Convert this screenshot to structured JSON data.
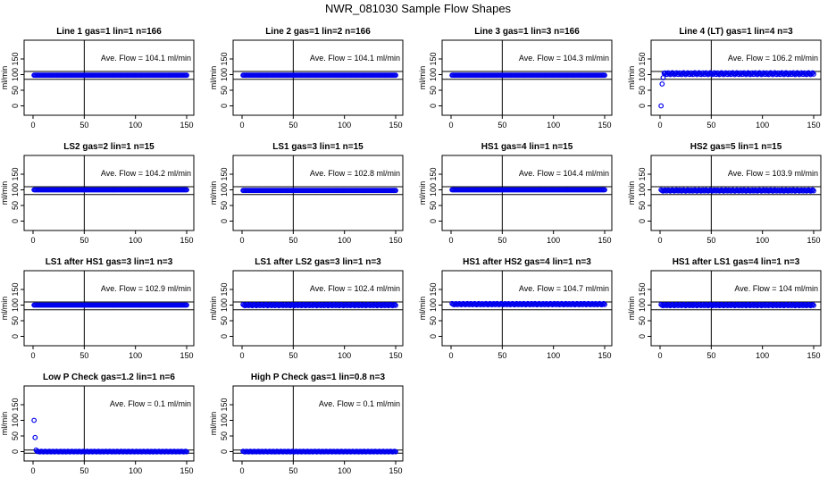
{
  "page": {
    "title": "NWR_081030  Sample Flow Shapes"
  },
  "colors": {
    "points": "#0000ee",
    "axes": "#000000",
    "background": "#ffffff"
  },
  "chart_data": [
    {
      "type": "scatter",
      "title": "Line 1 gas=1 lin=1 n=166",
      "ylabel": "ml/min",
      "annotation": "Ave. Flow =  104.1  ml/min",
      "xlim": [
        0,
        150
      ],
      "ylim": [
        -30,
        210
      ],
      "xticks": [
        0,
        50,
        100,
        150
      ],
      "yticks": [
        0,
        50,
        100,
        150
      ],
      "hlines": [
        85,
        110
      ],
      "vline": 50,
      "startup": [],
      "level": 98,
      "jitter": 0
    },
    {
      "type": "scatter",
      "title": "Line 2 gas=1 lin=2 n=166",
      "ylabel": "ml/min",
      "annotation": "Ave. Flow =  104.1  ml/min",
      "xlim": [
        0,
        150
      ],
      "ylim": [
        -30,
        210
      ],
      "xticks": [
        0,
        50,
        100,
        150
      ],
      "yticks": [
        0,
        50,
        100,
        150
      ],
      "hlines": [
        85,
        110
      ],
      "vline": 50,
      "startup": [],
      "level": 98,
      "jitter": 0
    },
    {
      "type": "scatter",
      "title": "Line 3 gas=1 lin=3 n=166",
      "ylabel": "ml/min",
      "annotation": "Ave. Flow =  104.3  ml/min",
      "xlim": [
        0,
        150
      ],
      "ylim": [
        -30,
        210
      ],
      "xticks": [
        0,
        50,
        100,
        150
      ],
      "yticks": [
        0,
        50,
        100,
        150
      ],
      "hlines": [
        85,
        110
      ],
      "vline": 50,
      "startup": [],
      "level": 98,
      "jitter": 0
    },
    {
      "type": "scatter",
      "title": "Line 4 (LT) gas=1 lin=4 n=3",
      "ylabel": "ml/min",
      "annotation": "Ave. Flow =  106.2  ml/min",
      "xlim": [
        0,
        150
      ],
      "ylim": [
        -30,
        210
      ],
      "xticks": [
        0,
        50,
        100,
        150
      ],
      "yticks": [
        0,
        50,
        100,
        150
      ],
      "hlines": [
        85,
        110
      ],
      "vline": 50,
      "startup": [
        [
          1,
          0
        ],
        [
          2,
          70
        ],
        [
          3,
          90
        ]
      ],
      "level": 103,
      "jitter": 3
    },
    {
      "type": "scatter",
      "title": "LS2 gas=2 lin=1 n=15",
      "ylabel": "ml/min",
      "annotation": "Ave. Flow =  104.2  ml/min",
      "xlim": [
        0,
        150
      ],
      "ylim": [
        -30,
        210
      ],
      "xticks": [
        0,
        50,
        100,
        150
      ],
      "yticks": [
        0,
        50,
        100,
        150
      ],
      "hlines": [
        85,
        110
      ],
      "vline": 50,
      "startup": [],
      "level": 100,
      "jitter": 0
    },
    {
      "type": "scatter",
      "title": "LS1 gas=3 lin=1 n=15",
      "ylabel": "ml/min",
      "annotation": "Ave. Flow =  102.8  ml/min",
      "xlim": [
        0,
        150
      ],
      "ylim": [
        -30,
        210
      ],
      "xticks": [
        0,
        50,
        100,
        150
      ],
      "yticks": [
        0,
        50,
        100,
        150
      ],
      "hlines": [
        85,
        110
      ],
      "vline": 50,
      "startup": [],
      "level": 98,
      "jitter": 0
    },
    {
      "type": "scatter",
      "title": "HS1 gas=4 lin=1 n=15",
      "ylabel": "ml/min",
      "annotation": "Ave. Flow =  104.4  ml/min",
      "xlim": [
        0,
        150
      ],
      "ylim": [
        -30,
        210
      ],
      "xticks": [
        0,
        50,
        100,
        150
      ],
      "yticks": [
        0,
        50,
        100,
        150
      ],
      "hlines": [
        85,
        110
      ],
      "vline": 50,
      "startup": [],
      "level": 100,
      "jitter": 0
    },
    {
      "type": "scatter",
      "title": "HS2 gas=5 lin=1 n=15",
      "ylabel": "ml/min",
      "annotation": "Ave. Flow =  103.9  ml/min",
      "xlim": [
        0,
        150
      ],
      "ylim": [
        -30,
        210
      ],
      "xticks": [
        0,
        50,
        100,
        150
      ],
      "yticks": [
        0,
        50,
        100,
        150
      ],
      "hlines": [
        85,
        110
      ],
      "vline": 50,
      "startup": [],
      "level": 98,
      "jitter": 2
    },
    {
      "type": "scatter",
      "title": "LS1 after HS1 gas=3 lin=1 n=3",
      "ylabel": "ml/min",
      "annotation": "Ave. Flow =  102.9  ml/min",
      "xlim": [
        0,
        150
      ],
      "ylim": [
        -30,
        210
      ],
      "xticks": [
        0,
        50,
        100,
        150
      ],
      "yticks": [
        0,
        50,
        100,
        150
      ],
      "hlines": [
        85,
        110
      ],
      "vline": 50,
      "startup": [],
      "level": 100,
      "jitter": 0
    },
    {
      "type": "scatter",
      "title": "LS1 after LS2 gas=3 lin=1 n=3",
      "ylabel": "ml/min",
      "annotation": "Ave. Flow =  102.4  ml/min",
      "xlim": [
        0,
        150
      ],
      "ylim": [
        -30,
        210
      ],
      "xticks": [
        0,
        50,
        100,
        150
      ],
      "yticks": [
        0,
        50,
        100,
        150
      ],
      "hlines": [
        85,
        110
      ],
      "vline": 50,
      "startup": [],
      "level": 100,
      "jitter": 2
    },
    {
      "type": "scatter",
      "title": "HS1 after HS2 gas=4 lin=1 n=3",
      "ylabel": "ml/min",
      "annotation": "Ave. Flow =  104.7  ml/min",
      "xlim": [
        0,
        150
      ],
      "ylim": [
        -30,
        210
      ],
      "xticks": [
        0,
        50,
        100,
        150
      ],
      "yticks": [
        0,
        50,
        100,
        150
      ],
      "hlines": [
        85,
        110
      ],
      "vline": 50,
      "startup": [],
      "level": 103,
      "jitter": 2
    },
    {
      "type": "scatter",
      "title": "HS1 after LS1 gas=4 lin=1 n=3",
      "ylabel": "ml/min",
      "annotation": "Ave. Flow =  104  ml/min",
      "xlim": [
        0,
        150
      ],
      "ylim": [
        -30,
        210
      ],
      "xticks": [
        0,
        50,
        100,
        150
      ],
      "yticks": [
        0,
        50,
        100,
        150
      ],
      "hlines": [
        85,
        110
      ],
      "vline": 50,
      "startup": [],
      "level": 100,
      "jitter": 2
    },
    {
      "type": "scatter",
      "title": "Low P Check gas=1.2 lin=1 n=6",
      "ylabel": "ml/min",
      "annotation": "Ave. Flow =  0.1  ml/min",
      "xlim": [
        0,
        150
      ],
      "ylim": [
        -30,
        210
      ],
      "xticks": [
        0,
        50,
        100,
        150
      ],
      "yticks": [
        0,
        50,
        100,
        150
      ],
      "hlines": [
        -5,
        5
      ],
      "vline": 50,
      "startup": [
        [
          1,
          100
        ],
        [
          2,
          45
        ],
        [
          3,
          5
        ]
      ],
      "level": 0,
      "jitter": 1
    },
    {
      "type": "scatter",
      "title": "High P Check gas=1 lin=0.8 n=3",
      "ylabel": "ml/min",
      "annotation": "Ave. Flow =  0.1  ml/min",
      "xlim": [
        0,
        150
      ],
      "ylim": [
        -30,
        210
      ],
      "xticks": [
        0,
        50,
        100,
        150
      ],
      "yticks": [
        0,
        50,
        100,
        150
      ],
      "hlines": [
        -5,
        5
      ],
      "vline": 50,
      "startup": [],
      "level": 0,
      "jitter": 1
    }
  ]
}
